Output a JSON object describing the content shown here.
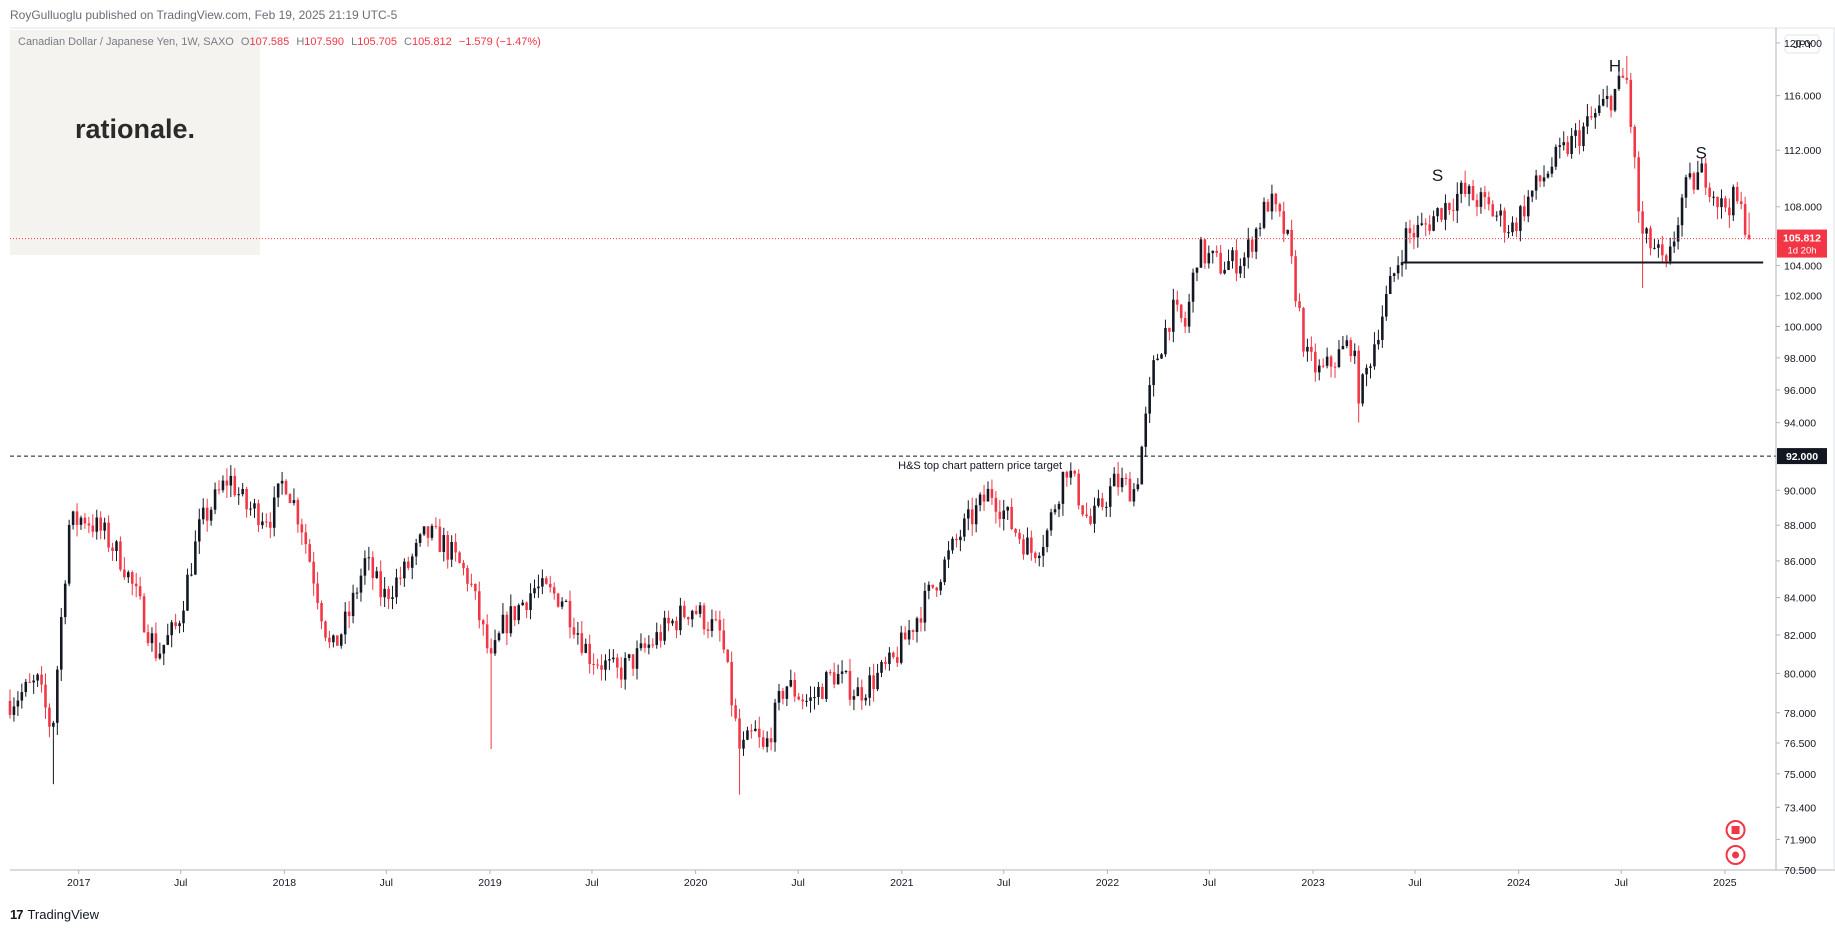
{
  "header": {
    "publisher_line": "RoyGulluoglu published on TradingView.com, Feb 19, 2025 21:19 UTC-5"
  },
  "legend": {
    "symbol": "Canadian Dollar / Japanese Yen, 1W, SAXO",
    "o_label": "O",
    "o_value": "107.585",
    "h_label": "H",
    "h_value": "107.590",
    "l_label": "L",
    "l_value": "105.705",
    "c_label": "C",
    "c_value": "105.812",
    "change": "−1.579 (−1.47%)"
  },
  "watermark": {
    "text": "rationale."
  },
  "footer": {
    "brand": "TradingView"
  },
  "colors": {
    "up": "#131722",
    "down": "#f23645",
    "grid": "#f0f3fa",
    "axis_text": "#131722",
    "price_badge": "#f23645",
    "level_badge": "#131722"
  },
  "chart_data": {
    "type": "candlestick",
    "timeframe": "1W",
    "currency_label": "JPY",
    "price_scale": "log",
    "ylim": [
      70.5,
      121.0
    ],
    "y_ticks": [
      70.5,
      71.9,
      73.4,
      75.0,
      76.5,
      78.0,
      80.0,
      82.0,
      84.0,
      86.0,
      88.0,
      90.0,
      94.0,
      96.0,
      98.0,
      100.0,
      102.0,
      104.0,
      108.0,
      112.0,
      116.0,
      120.0
    ],
    "y_tick_labels": [
      "70.500",
      "71.900",
      "73.400",
      "75.000",
      "76.500",
      "78.000",
      "80.000",
      "82.000",
      "84.000",
      "86.000",
      "88.000",
      "90.000",
      "94.000",
      "96.000",
      "98.000",
      "100.000",
      "102.000",
      "104.000",
      "108.000",
      "112.000",
      "116.000",
      "120.000"
    ],
    "x_range": [
      "2016-09-01",
      "2025-03-31"
    ],
    "x_ticks": [
      {
        "date": "2017-01-01",
        "label": "2017"
      },
      {
        "date": "2017-07-01",
        "label": "Jul"
      },
      {
        "date": "2018-01-01",
        "label": "2018"
      },
      {
        "date": "2018-07-01",
        "label": "Jul"
      },
      {
        "date": "2019-01-01",
        "label": "2019"
      },
      {
        "date": "2019-07-01",
        "label": "Jul"
      },
      {
        "date": "2020-01-01",
        "label": "2020"
      },
      {
        "date": "2020-07-01",
        "label": "Jul"
      },
      {
        "date": "2021-01-01",
        "label": "2021"
      },
      {
        "date": "2021-07-01",
        "label": "Jul"
      },
      {
        "date": "2022-01-01",
        "label": "2022"
      },
      {
        "date": "2022-07-01",
        "label": "Jul"
      },
      {
        "date": "2023-01-01",
        "label": "2023"
      },
      {
        "date": "2023-07-01",
        "label": "Jul"
      },
      {
        "date": "2024-01-01",
        "label": "2024"
      },
      {
        "date": "2024-07-01",
        "label": "Jul"
      },
      {
        "date": "2025-01-01",
        "label": "2025"
      }
    ],
    "price_path": [
      [
        "2016-09-01",
        78.6
      ],
      [
        "2016-10-20",
        79.5
      ],
      [
        "2016-11-15",
        77.0
      ],
      [
        "2016-12-15",
        88.0
      ],
      [
        "2017-01-10",
        88.5
      ],
      [
        "2017-02-15",
        87.5
      ],
      [
        "2017-03-20",
        86.0
      ],
      [
        "2017-05-20",
        81.0
      ],
      [
        "2017-06-25",
        82.5
      ],
      [
        "2017-08-05",
        88.0
      ],
      [
        "2017-09-25",
        90.8
      ],
      [
        "2017-10-25",
        89.0
      ],
      [
        "2017-12-10",
        88.5
      ],
      [
        "2018-01-01",
        90.8
      ],
      [
        "2018-02-01",
        88.0
      ],
      [
        "2018-03-25",
        81.0
      ],
      [
        "2018-04-25",
        83.0
      ],
      [
        "2018-05-25",
        86.0
      ],
      [
        "2018-06-25",
        84.0
      ],
      [
        "2018-08-05",
        85.5
      ],
      [
        "2018-09-10",
        87.5
      ],
      [
        "2018-10-10",
        87.0
      ],
      [
        "2018-11-25",
        85.0
      ],
      [
        "2019-01-03",
        80.5
      ],
      [
        "2019-01-25",
        82.5
      ],
      [
        "2019-03-20",
        84.5
      ],
      [
        "2019-05-10",
        84.0
      ],
      [
        "2019-06-25",
        81.0
      ],
      [
        "2019-08-15",
        80.0
      ],
      [
        "2019-09-25",
        81.0
      ],
      [
        "2019-11-15",
        82.5
      ],
      [
        "2019-12-25",
        83.5
      ],
      [
        "2020-02-15",
        82.0
      ],
      [
        "2020-03-20",
        76.0
      ],
      [
        "2020-04-15",
        77.0
      ],
      [
        "2020-05-01",
        76.0
      ],
      [
        "2020-06-08",
        79.5
      ],
      [
        "2020-07-20",
        78.5
      ],
      [
        "2020-09-01",
        80.0
      ],
      [
        "2020-10-15",
        79.0
      ],
      [
        "2020-12-15",
        80.5
      ],
      [
        "2021-02-15",
        84.0
      ],
      [
        "2021-04-15",
        87.5
      ],
      [
        "2021-06-08",
        90.0
      ],
      [
        "2021-07-15",
        88.0
      ],
      [
        "2021-08-20",
        86.5
      ],
      [
        "2021-09-15",
        87.5
      ],
      [
        "2021-10-20",
        91.5
      ],
      [
        "2021-12-01",
        88.0
      ],
      [
        "2022-01-15",
        90.5
      ],
      [
        "2022-02-20",
        90.0
      ],
      [
        "2022-03-25",
        97.5
      ],
      [
        "2022-04-25",
        101.0
      ],
      [
        "2022-05-20",
        100.0
      ],
      [
        "2022-06-10",
        105.0
      ],
      [
        "2022-07-20",
        104.0
      ],
      [
        "2022-09-01",
        104.5
      ],
      [
        "2022-10-15",
        108.5
      ],
      [
        "2022-11-15",
        106.0
      ],
      [
        "2022-12-20",
        98.0
      ],
      [
        "2023-01-15",
        97.0
      ],
      [
        "2023-03-10",
        99.0
      ],
      [
        "2023-03-25",
        95.5
      ],
      [
        "2023-05-01",
        100.5
      ],
      [
        "2023-06-15",
        106.0
      ],
      [
        "2023-07-15",
        106.5
      ],
      [
        "2023-08-20",
        108.0
      ],
      [
        "2023-09-20",
        109.0
      ],
      [
        "2023-10-20",
        108.5
      ],
      [
        "2023-11-20",
        107.5
      ],
      [
        "2023-12-20",
        106.5
      ],
      [
        "2024-01-25",
        109.0
      ],
      [
        "2024-03-01",
        111.0
      ],
      [
        "2024-04-25",
        113.5
      ],
      [
        "2024-06-15",
        116.0
      ],
      [
        "2024-07-10",
        117.5
      ],
      [
        "2024-08-05",
        106.0
      ],
      [
        "2024-09-01",
        105.0
      ],
      [
        "2024-09-20",
        103.5
      ],
      [
        "2024-10-20",
        109.0
      ],
      [
        "2024-11-25",
        110.5
      ],
      [
        "2024-12-25",
        108.0
      ],
      [
        "2025-01-20",
        108.5
      ],
      [
        "2025-02-19",
        105.812
      ]
    ],
    "extreme_wicks": [
      {
        "date": "2016-11-15",
        "low": 74.5
      },
      {
        "date": "2019-01-03",
        "low": 76.2
      },
      {
        "date": "2020-03-20",
        "low": 74.0
      },
      {
        "date": "2023-03-25",
        "low": 94.0
      },
      {
        "date": "2024-08-05",
        "low": 102.5
      },
      {
        "date": "2024-07-10",
        "high": 119.0
      }
    ],
    "annotations": {
      "target_line": {
        "value": 92.0,
        "label": "92.000",
        "text": "H&S top chart pattern price target"
      },
      "neckline": {
        "value": 104.2,
        "x0": "2023-06-10",
        "x1": "2025-03-10"
      },
      "last_price": {
        "value": 105.812,
        "label": "105.812",
        "countdown": "1d 20h"
      },
      "pattern_labels": [
        {
          "text": "S",
          "date": "2023-08-10",
          "value": 109.8
        },
        {
          "text": "H",
          "date": "2024-06-20",
          "value": 117.8
        },
        {
          "text": "S",
          "date": "2024-11-20",
          "value": 111.4
        }
      ]
    }
  }
}
